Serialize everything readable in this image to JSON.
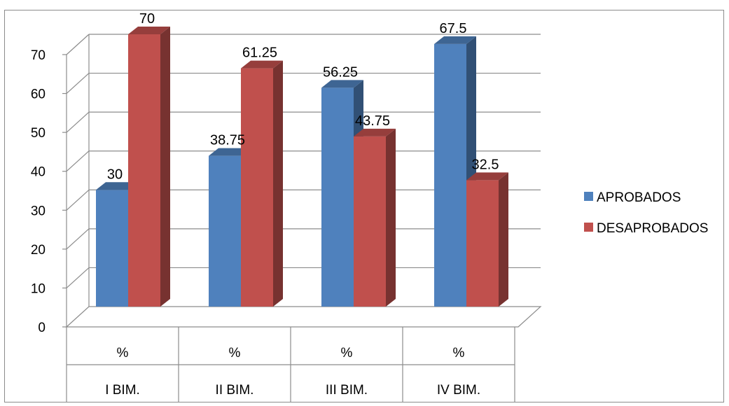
{
  "chart_data": {
    "type": "bar",
    "categories": [
      {
        "top": "%",
        "bottom": "I BIM."
      },
      {
        "top": "%",
        "bottom": "II BIM."
      },
      {
        "top": "%",
        "bottom": "III BIM."
      },
      {
        "top": "%",
        "bottom": "IV BIM."
      }
    ],
    "series": [
      {
        "name": "APROBADOS",
        "values": [
          30,
          38.75,
          56.25,
          67.5
        ],
        "labels": [
          "30",
          "38.75",
          "56.25",
          "67.5"
        ],
        "color": "#4f81bd"
      },
      {
        "name": "DESAPROBADOS",
        "values": [
          70,
          61.25,
          43.75,
          32.5
        ],
        "labels": [
          "70",
          "61.25",
          "43.75",
          "32.5"
        ],
        "color": "#c0504d"
      }
    ],
    "ylim": [
      0,
      70
    ],
    "yticks": [
      "0",
      "10",
      "20",
      "30",
      "40",
      "50",
      "60",
      "70"
    ],
    "grid": true,
    "style": "3d-clustered-column",
    "legend_position": "right"
  }
}
